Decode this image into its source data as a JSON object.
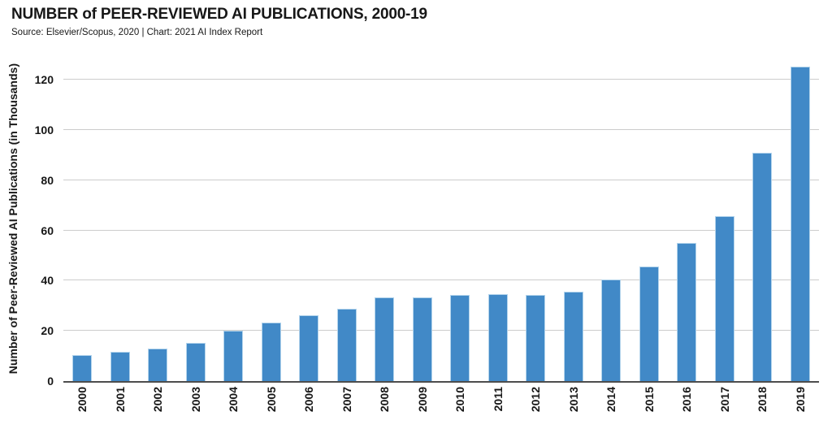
{
  "header": {
    "title": "NUMBER of PEER-REVIEWED AI PUBLICATIONS, 2000-19",
    "subtitle": "Source: Elsevier/Scopus, 2020 | Chart: 2021 AI Index Report"
  },
  "chart_data": {
    "type": "bar",
    "title": "NUMBER of PEER-REVIEWED AI PUBLICATIONS, 2000-19",
    "subtitle": "Source: Elsevier/Scopus, 2020 | Chart: 2021 AI Index Report",
    "categories": [
      "2000",
      "2001",
      "2002",
      "2003",
      "2004",
      "2005",
      "2006",
      "2007",
      "2008",
      "2009",
      "2010",
      "2011",
      "2012",
      "2013",
      "2014",
      "2015",
      "2016",
      "2017",
      "2018",
      "2019"
    ],
    "values": [
      10.2,
      11.5,
      13.0,
      15.2,
      20.1,
      23.3,
      26.2,
      28.7,
      33.4,
      33.4,
      34.3,
      34.7,
      34.4,
      35.7,
      40.6,
      45.5,
      55.1,
      65.7,
      91.0,
      125.3
    ],
    "xlabel": "",
    "ylabel": "Number of Peer-Reviewed AI Publications (in Thousands)",
    "y_ticks": [
      0,
      20,
      40,
      60,
      80,
      100,
      120
    ],
    "ylim": [
      0,
      129.5
    ],
    "grid": "horizontal",
    "legend_position": "none",
    "colors": {
      "bar_fill": "#4189c7",
      "bar_edge": "#b3d4ec",
      "gridline": "#cccccc",
      "axis_line": "#4d4d4d",
      "text": "#171717"
    }
  }
}
